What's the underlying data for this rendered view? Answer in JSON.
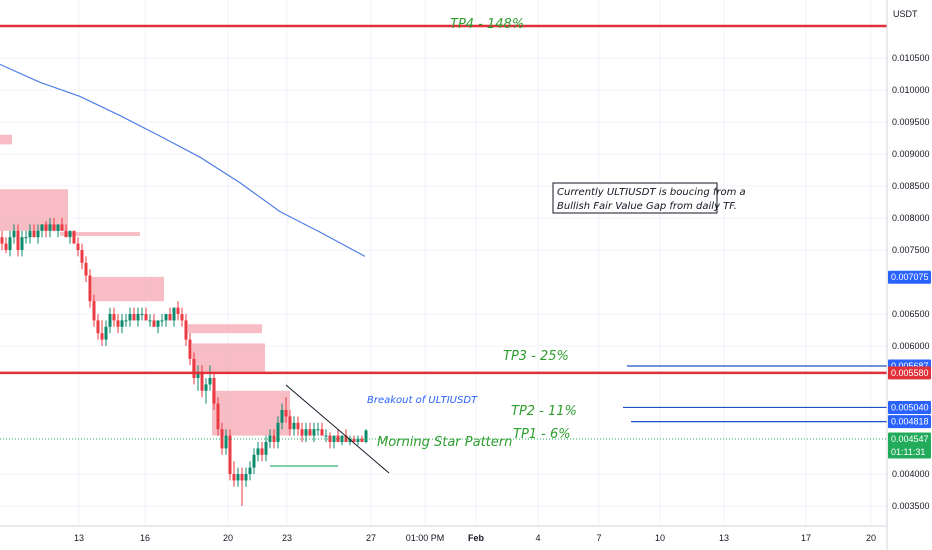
{
  "chart_data": {
    "type": "line",
    "symbol": "ULTIUSDT",
    "currency_label": "USDT",
    "y_ticks": [
      "0.010500",
      "0.010000",
      "0.009500",
      "0.009000",
      "0.008500",
      "0.008000",
      "0.007500",
      "0.006500",
      "0.006000",
      "0.004000",
      "0.003500"
    ],
    "x_ticks": [
      {
        "label": "13",
        "x": 79
      },
      {
        "label": "16",
        "x": 145
      },
      {
        "label": "20",
        "x": 228
      },
      {
        "label": "23",
        "x": 287
      },
      {
        "label": "27",
        "x": 371
      },
      {
        "label": "01:00 PM",
        "x": 425
      },
      {
        "label": "Feb",
        "x": 476
      },
      {
        "label": "4",
        "x": 538
      },
      {
        "label": "7",
        "x": 599
      },
      {
        "label": "10",
        "x": 660
      },
      {
        "label": "13",
        "x": 724
      },
      {
        "label": "17",
        "x": 806
      },
      {
        "label": "20",
        "x": 871
      }
    ],
    "price_badges": [
      {
        "value": "0.007075",
        "color": "#2962ff"
      },
      {
        "value": "0.005687",
        "color": "#2962ff"
      },
      {
        "value": "0.005580",
        "color": "#e0313a"
      },
      {
        "value": "0.005040",
        "color": "#2962ff"
      },
      {
        "value": "0.004818",
        "color": "#2962ff"
      },
      {
        "value": "0.004547",
        "color": "#22ab5a"
      }
    ],
    "countdown": "01:11:31",
    "targets": [
      {
        "label": "TP4 - 148%",
        "price": 0.011
      },
      {
        "label": "TP3 - 25%",
        "price": 0.005687
      },
      {
        "label": "TP2 - 11%",
        "price": 0.00504
      },
      {
        "label": "TP1 - 6%",
        "price": 0.004818
      }
    ],
    "support_price": 0.00558,
    "annotations": {
      "note_line1": "Currently ULTIUSDT is boucing from a",
      "note_line2": "Bullish Fair Value Gap from daily TF.",
      "breakout": "Breakout of ULTIUSDT",
      "pattern": "Morning Star Pattern"
    },
    "moving_average": [
      [
        0,
        0.0104
      ],
      [
        40,
        0.01012
      ],
      [
        80,
        0.0099
      ],
      [
        120,
        0.0096
      ],
      [
        160,
        0.00928
      ],
      [
        200,
        0.00895
      ],
      [
        240,
        0.00855
      ],
      [
        280,
        0.0081
      ],
      [
        320,
        0.00778
      ],
      [
        365,
        0.0074
      ]
    ],
    "candles": [
      [
        2,
        0.0077,
        0.0078,
        0.0075,
        0.0076
      ],
      [
        6,
        0.0076,
        0.0077,
        0.00745,
        0.0075
      ],
      [
        10,
        0.0075,
        0.0078,
        0.0074,
        0.0077
      ],
      [
        14,
        0.0077,
        0.0079,
        0.0076,
        0.0078
      ],
      [
        18,
        0.0078,
        0.0079,
        0.0074,
        0.0075
      ],
      [
        22,
        0.0075,
        0.0078,
        0.0074,
        0.0077
      ],
      [
        26,
        0.0077,
        0.0078,
        0.0076,
        0.0077
      ],
      [
        30,
        0.0077,
        0.0079,
        0.0076,
        0.0078
      ],
      [
        34,
        0.0078,
        0.0079,
        0.0077,
        0.0077
      ],
      [
        38,
        0.0077,
        0.0079,
        0.0076,
        0.0078
      ],
      [
        42,
        0.0078,
        0.0079,
        0.0077,
        0.0079
      ],
      [
        46,
        0.0079,
        0.00795,
        0.0077,
        0.0078
      ],
      [
        50,
        0.0078,
        0.008,
        0.0077,
        0.0079
      ],
      [
        54,
        0.0079,
        0.008,
        0.0078,
        0.0078
      ],
      [
        58,
        0.0078,
        0.0079,
        0.0077,
        0.0079
      ],
      [
        62,
        0.0079,
        0.008,
        0.0078,
        0.0078
      ],
      [
        66,
        0.0078,
        0.0079,
        0.0077,
        0.0077
      ],
      [
        70,
        0.0077,
        0.0078,
        0.0076,
        0.0078
      ],
      [
        74,
        0.0078,
        0.0078,
        0.0076,
        0.0076
      ],
      [
        78,
        0.0076,
        0.0077,
        0.0074,
        0.0075
      ],
      [
        82,
        0.0075,
        0.0076,
        0.0072,
        0.0073
      ],
      [
        86,
        0.0073,
        0.0074,
        0.007,
        0.0071
      ],
      [
        90,
        0.0071,
        0.0072,
        0.0066,
        0.0067
      ],
      [
        94,
        0.0067,
        0.0068,
        0.0063,
        0.0064
      ],
      [
        98,
        0.0064,
        0.0065,
        0.0061,
        0.0062
      ],
      [
        102,
        0.0062,
        0.0064,
        0.006,
        0.0061
      ],
      [
        106,
        0.0061,
        0.0064,
        0.006,
        0.0063
      ],
      [
        110,
        0.0063,
        0.0066,
        0.0062,
        0.0065
      ],
      [
        114,
        0.0065,
        0.0066,
        0.0063,
        0.0064
      ],
      [
        118,
        0.0064,
        0.0065,
        0.0062,
        0.0063
      ],
      [
        122,
        0.0063,
        0.0065,
        0.0062,
        0.0064
      ],
      [
        126,
        0.0064,
        0.0065,
        0.0063,
        0.0064
      ],
      [
        130,
        0.0064,
        0.0066,
        0.0063,
        0.0065
      ],
      [
        134,
        0.0065,
        0.0066,
        0.0064,
        0.0064
      ],
      [
        138,
        0.0064,
        0.0066,
        0.0063,
        0.0065
      ],
      [
        142,
        0.0065,
        0.0066,
        0.0064,
        0.0065
      ],
      [
        146,
        0.0065,
        0.0066,
        0.0064,
        0.0064
      ],
      [
        150,
        0.0064,
        0.0065,
        0.0063,
        0.0064
      ],
      [
        154,
        0.0064,
        0.0065,
        0.0063,
        0.0063
      ],
      [
        158,
        0.0063,
        0.0064,
        0.0062,
        0.0064
      ],
      [
        162,
        0.0064,
        0.0065,
        0.0063,
        0.0064
      ],
      [
        166,
        0.0064,
        0.0065,
        0.0063,
        0.0065
      ],
      [
        170,
        0.0065,
        0.0066,
        0.0064,
        0.0064
      ],
      [
        174,
        0.0064,
        0.0066,
        0.0063,
        0.0066
      ],
      [
        178,
        0.0066,
        0.0067,
        0.0064,
        0.0065
      ],
      [
        182,
        0.0065,
        0.0066,
        0.0063,
        0.0064
      ],
      [
        186,
        0.0064,
        0.0065,
        0.006,
        0.0061
      ],
      [
        190,
        0.0061,
        0.0062,
        0.0057,
        0.0058
      ],
      [
        194,
        0.0058,
        0.0059,
        0.0054,
        0.0055
      ],
      [
        198,
        0.0055,
        0.0057,
        0.0053,
        0.0056
      ],
      [
        202,
        0.0056,
        0.0057,
        0.0052,
        0.0053
      ],
      [
        206,
        0.0053,
        0.0055,
        0.0051,
        0.0054
      ],
      [
        210,
        0.0054,
        0.0057,
        0.0053,
        0.0055
      ],
      [
        214,
        0.0055,
        0.0056,
        0.005,
        0.0051
      ],
      [
        218,
        0.0051,
        0.0052,
        0.0046,
        0.0047
      ],
      [
        222,
        0.0047,
        0.0048,
        0.0043,
        0.0044
      ],
      [
        226,
        0.0044,
        0.0047,
        0.0043,
        0.0046
      ],
      [
        230,
        0.0046,
        0.0047,
        0.0039,
        0.004
      ],
      [
        234,
        0.004,
        0.0042,
        0.0038,
        0.0039
      ],
      [
        238,
        0.0039,
        0.0041,
        0.0038,
        0.004
      ],
      [
        242,
        0.004,
        0.0041,
        0.0035,
        0.0039
      ],
      [
        246,
        0.0039,
        0.0041,
        0.0038,
        0.004
      ],
      [
        250,
        0.004,
        0.0042,
        0.0039,
        0.0041
      ],
      [
        254,
        0.0041,
        0.0044,
        0.004,
        0.0043
      ],
      [
        258,
        0.0043,
        0.0045,
        0.0042,
        0.0044
      ],
      [
        262,
        0.0044,
        0.0045,
        0.0042,
        0.0043
      ],
      [
        266,
        0.0043,
        0.0046,
        0.0042,
        0.0045
      ],
      [
        270,
        0.0045,
        0.0047,
        0.0044,
        0.0046
      ],
      [
        274,
        0.0046,
        0.0047,
        0.0044,
        0.0045
      ],
      [
        278,
        0.0045,
        0.0049,
        0.0044,
        0.0048
      ],
      [
        282,
        0.0048,
        0.0051,
        0.0047,
        0.005
      ],
      [
        286,
        0.005,
        0.0052,
        0.0048,
        0.0049
      ],
      [
        290,
        0.0049,
        0.005,
        0.0046,
        0.0047
      ],
      [
        294,
        0.0047,
        0.0049,
        0.0046,
        0.0048
      ],
      [
        298,
        0.0048,
        0.0049,
        0.0046,
        0.0047
      ],
      [
        302,
        0.0047,
        0.0048,
        0.0045,
        0.0046
      ],
      [
        306,
        0.0046,
        0.0048,
        0.0045,
        0.0047
      ],
      [
        310,
        0.0047,
        0.0048,
        0.0046,
        0.0046
      ],
      [
        314,
        0.0046,
        0.0048,
        0.0045,
        0.0047
      ],
      [
        318,
        0.0047,
        0.0048,
        0.0046,
        0.0047
      ],
      [
        322,
        0.0047,
        0.0048,
        0.0046,
        0.0046
      ],
      [
        326,
        0.0046,
        0.0047,
        0.0045,
        0.0046
      ],
      [
        330,
        0.0046,
        0.00465,
        0.0044,
        0.0045
      ],
      [
        334,
        0.0045,
        0.0046,
        0.0044,
        0.0046
      ],
      [
        338,
        0.0046,
        0.0047,
        0.0045,
        0.0045
      ],
      [
        342,
        0.0045,
        0.0046,
        0.00445,
        0.0046
      ],
      [
        346,
        0.0046,
        0.0047,
        0.0045,
        0.0045
      ],
      [
        350,
        0.0045,
        0.0046,
        0.00445,
        0.00455
      ],
      [
        354,
        0.00455,
        0.0046,
        0.0045,
        0.0045
      ],
      [
        358,
        0.0045,
        0.0046,
        0.00445,
        0.00455
      ],
      [
        362,
        0.00455,
        0.0046,
        0.0045,
        0.0045
      ],
      [
        366,
        0.0045,
        0.0047,
        0.00448,
        0.00468
      ]
    ],
    "fvg_zones": [
      {
        "x0": 0,
        "x1": 12,
        "p0": 0.0093,
        "p1": 0.00915
      },
      {
        "x0": 0,
        "x1": 68,
        "p0": 0.00845,
        "p1": 0.0078
      },
      {
        "x0": 60,
        "x1": 140,
        "p0": 0.00778,
        "p1": 0.00772
      },
      {
        "x0": 92,
        "x1": 164,
        "p0": 0.00708,
        "p1": 0.0067
      },
      {
        "x0": 188,
        "x1": 262,
        "p0": 0.00634,
        "p1": 0.0062
      },
      {
        "x0": 192,
        "x1": 265,
        "p0": 0.00604,
        "p1": 0.0056
      },
      {
        "x0": 212,
        "x1": 290,
        "p0": 0.0053,
        "p1": 0.0046
      }
    ],
    "colors": {
      "bull": "#0c8a6c",
      "bear": "#eb3a42",
      "ma": "#4f7fe6",
      "fvg": "#f5a7b0",
      "tp_line": "#1e50c8",
      "support": "#e0313a",
      "grid": "#f0f3fa",
      "current": "#22ab5a"
    }
  }
}
